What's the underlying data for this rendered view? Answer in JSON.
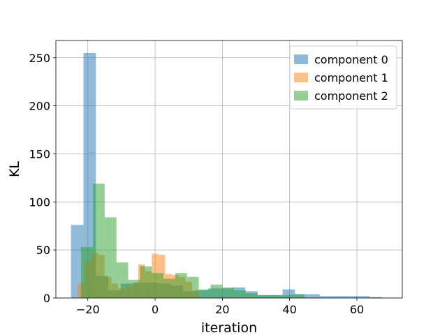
{
  "chart_data": {
    "type": "bar",
    "subtype": "overlapping-histogram",
    "title": "",
    "xlabel": "iteration",
    "ylabel": "KL",
    "xlim": [
      -29.5,
      73.5
    ],
    "ylim": [
      0,
      268
    ],
    "xticks": [
      -20,
      0,
      20,
      40,
      60
    ],
    "xtick_labels": [
      "−20",
      "0",
      "20",
      "40",
      "60"
    ],
    "yticks": [
      0,
      50,
      100,
      150,
      200,
      250
    ],
    "ytick_labels": [
      "0",
      "50",
      "100",
      "150",
      "200",
      "250"
    ],
    "grid": true,
    "legend_position": "upper right",
    "series": [
      {
        "name": "component 0",
        "color": "#1f77b4",
        "alpha": 0.5,
        "bin_edges": [
          -25.0,
          -21.3,
          -17.6,
          -13.9,
          -10.2,
          -6.5,
          -2.8,
          0.9,
          4.6,
          8.3,
          12.0,
          15.7,
          19.4,
          23.1,
          26.8,
          30.5,
          34.2,
          37.9,
          41.6,
          45.3,
          49.0,
          52.7,
          56.4,
          60.1,
          63.8,
          67.5
        ],
        "counts": [
          76,
          255,
          23,
          8,
          15,
          16,
          16,
          15,
          13,
          7,
          8,
          10,
          10,
          11,
          7,
          3,
          3,
          9,
          4,
          4,
          2,
          2,
          2,
          2,
          1
        ]
      },
      {
        "name": "component 1",
        "color": "#ff7f0e",
        "alpha": 0.5,
        "bin_edges": [
          -23.0,
          -21.0,
          -19.0,
          -17.0,
          -15.0,
          -13.0,
          -11.0,
          -9.0,
          -7.0,
          -5.0,
          -3.0,
          -1.0,
          1.0,
          3.0,
          5.0,
          7.0,
          9.0,
          11.0,
          13.0
        ],
        "counts": [
          15,
          38,
          47,
          45,
          22,
          15,
          10,
          12,
          15,
          35,
          28,
          46,
          45,
          25,
          24,
          22,
          17,
          8
        ]
      },
      {
        "name": "component 2",
        "color": "#2ca02c",
        "alpha": 0.5,
        "bin_edges": [
          -22.0,
          -18.5,
          -15.0,
          -11.5,
          -8.0,
          -4.5,
          -1.0,
          2.5,
          6.0,
          9.5,
          13.0,
          16.5,
          20.0,
          23.5,
          27.0,
          30.5,
          34.0,
          37.5,
          41.0,
          44.5
        ],
        "counts": [
          53,
          119,
          84,
          37,
          19,
          33,
          26,
          20,
          26,
          22,
          9,
          14,
          11,
          8,
          5,
          3,
          3,
          3,
          4
        ]
      }
    ]
  }
}
